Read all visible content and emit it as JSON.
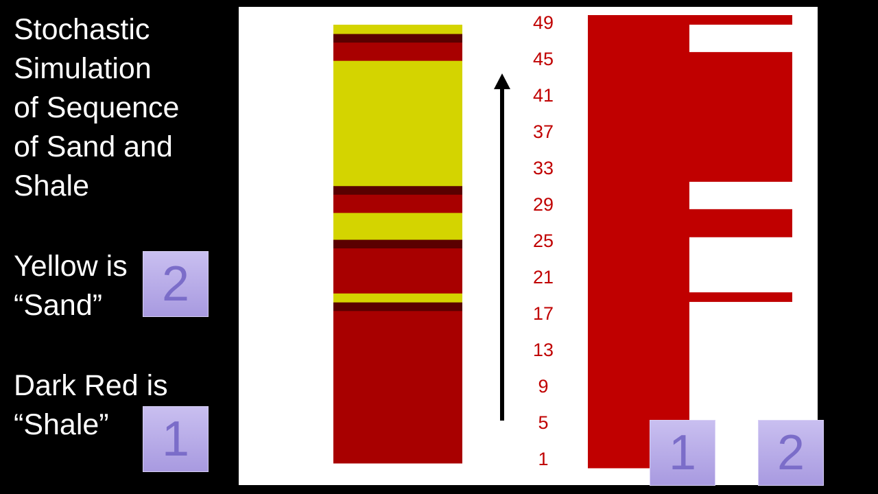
{
  "title_lines": [
    "Stochastic",
    "Simulation",
    "of Sequence",
    "of Sand and",
    "Shale"
  ],
  "legend": [
    {
      "text_lines": [
        "Yellow is",
        "“Sand”"
      ],
      "code": "2"
    },
    {
      "text_lines": [
        "Dark Red is",
        "“Shale”"
      ],
      "code": "1"
    }
  ],
  "axis_labels": [
    1,
    5,
    9,
    13,
    17,
    21,
    25,
    29,
    33,
    37,
    41,
    45,
    49
  ],
  "sequence": [
    1,
    1,
    1,
    1,
    1,
    1,
    1,
    1,
    1,
    1,
    1,
    1,
    1,
    1,
    1,
    1,
    1,
    1,
    2,
    1,
    1,
    1,
    1,
    1,
    1,
    2,
    2,
    2,
    1,
    1,
    1,
    2,
    2,
    2,
    2,
    2,
    2,
    2,
    2,
    2,
    2,
    2,
    2,
    2,
    2,
    1,
    1,
    1,
    2
  ],
  "bottom_labels": [
    "1",
    "2"
  ],
  "colors": {
    "sand": "#d4d400",
    "shale": "#a80000",
    "shale_edge": "#5a0000",
    "plot": "#c00000",
    "label": "#c00000"
  }
}
